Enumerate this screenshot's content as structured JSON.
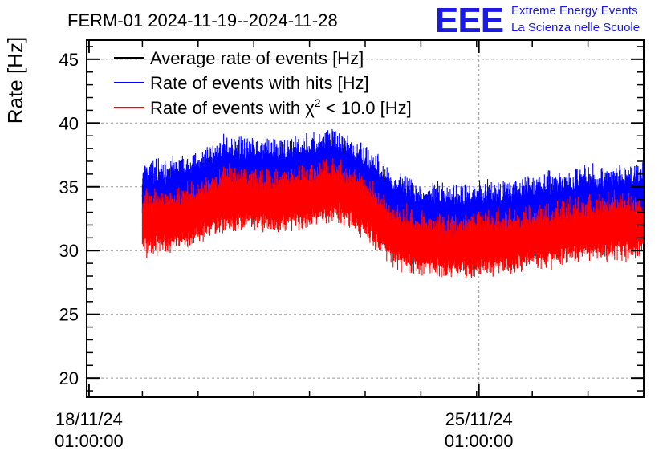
{
  "chart_data": {
    "type": "line",
    "title": "FERM-01 2024-11-19--2024-11-28",
    "ylabel": "Rate [Hz]",
    "xlabel": "",
    "x_range": [
      "2024-11-18T00:00:00",
      "2024-11-28T00:00:00"
    ],
    "ylim": [
      18.5,
      46.5
    ],
    "yticks": [
      20,
      25,
      30,
      35,
      40,
      45
    ],
    "xticks": [
      {
        "date": "2024-11-18T01:00:00",
        "line1": "18/11/24",
        "line2": "01:00:00"
      },
      {
        "date": "2024-11-25T01:00:00",
        "line1": "25/11/24",
        "line2": "01:00:00"
      }
    ],
    "grid": true,
    "legend_position": "top-left",
    "series": [
      {
        "name": "Average rate of events [Hz]",
        "color": "#000000",
        "x": [],
        "values": []
      },
      {
        "name": "Rate of events with hits [Hz]",
        "color": "#0000ff",
        "x": [
          "2024-11-19T00:00:00",
          "2024-11-19T12:00:00",
          "2024-11-20T00:00:00",
          "2024-11-20T12:00:00",
          "2024-11-21T00:00:00",
          "2024-11-21T12:00:00",
          "2024-11-22T00:00:00",
          "2024-11-22T12:00:00",
          "2024-11-23T00:00:00",
          "2024-11-23T12:00:00",
          "2024-11-24T00:00:00",
          "2024-11-24T12:00:00",
          "2024-11-25T00:00:00",
          "2024-11-25T12:00:00",
          "2024-11-26T00:00:00",
          "2024-11-26T12:00:00",
          "2024-11-27T00:00:00",
          "2024-11-27T12:00:00",
          "2024-11-28T00:00:00"
        ],
        "values": [
          34.3,
          34.5,
          35.2,
          36.4,
          36.2,
          36.0,
          36.5,
          36.8,
          35.6,
          33.5,
          32.7,
          32.5,
          32.7,
          32.8,
          33.2,
          33.6,
          33.9,
          34.0,
          34.1
        ]
      },
      {
        "name": "Rate of events with χ² < 10.0 [Hz]",
        "color": "#ff0000",
        "x": [
          "2024-11-19T00:00:00",
          "2024-11-19T12:00:00",
          "2024-11-20T00:00:00",
          "2024-11-20T12:00:00",
          "2024-11-21T00:00:00",
          "2024-11-21T12:00:00",
          "2024-11-22T00:00:00",
          "2024-11-22T12:00:00",
          "2024-11-23T00:00:00",
          "2024-11-23T12:00:00",
          "2024-11-24T00:00:00",
          "2024-11-24T12:00:00",
          "2024-11-25T00:00:00",
          "2024-11-25T12:00:00",
          "2024-11-26T00:00:00",
          "2024-11-26T12:00:00",
          "2024-11-27T00:00:00",
          "2024-11-27T12:00:00",
          "2024-11-28T00:00:00"
        ],
        "values": [
          32.0,
          32.2,
          32.9,
          34.1,
          33.9,
          33.8,
          34.2,
          34.6,
          33.3,
          31.2,
          30.4,
          30.2,
          30.4,
          30.5,
          30.9,
          31.3,
          31.6,
          31.8,
          31.8
        ]
      }
    ],
    "legend_entries": [
      "Average rate of events [Hz]",
      "Rate of events with hits [Hz]"
    ],
    "legend_chi_entry": {
      "prefix": "Rate of events with ",
      "chi": "χ",
      "sup": "2",
      "suffix": " < 10.0 [Hz]"
    }
  },
  "logo": {
    "mark": "EEE",
    "line1": "Extreme Energy Events",
    "line2": "La Scienza nelle Scuole",
    "color": "#1a1ae6"
  }
}
